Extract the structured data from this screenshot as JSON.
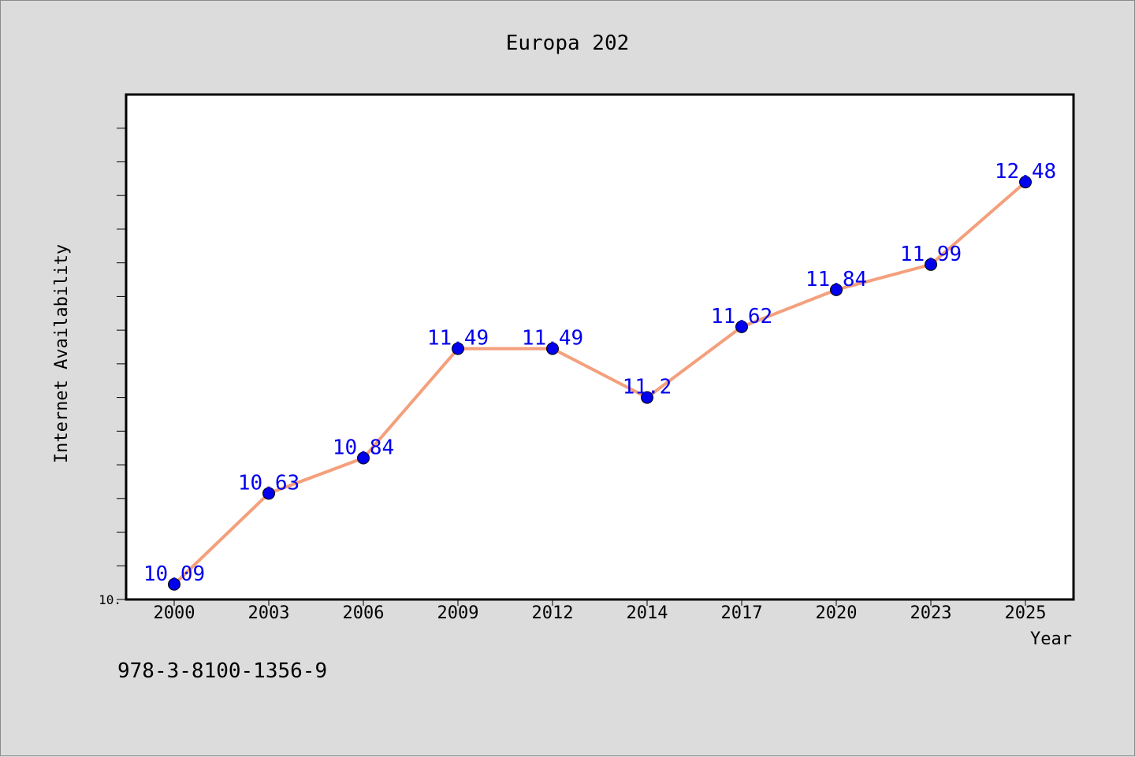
{
  "chart_data": {
    "type": "line",
    "title": "Europa 202",
    "xlabel": "Year",
    "ylabel": "Internet Availability",
    "categories": [
      "2000",
      "2003",
      "2006",
      "2009",
      "2012",
      "2014",
      "2017",
      "2020",
      "2023",
      "2025"
    ],
    "series": [
      {
        "values": [
          10.09,
          10.63,
          10.84,
          11.49,
          11.49,
          11.2,
          11.62,
          11.84,
          11.99,
          12.48
        ],
        "labels": [
          "10.09",
          "10.63",
          "10.84",
          "11.49",
          "11.49",
          "11.2",
          "11.62",
          "11.84",
          "11.99",
          "12.48"
        ]
      }
    ],
    "ylim": [
      10.0,
      13.0
    ],
    "y_tick_label": "10.",
    "grid": false,
    "line_color": "#f4a07c",
    "marker_color": "#0000ee",
    "label_color": "#0000ee"
  },
  "footnote": "978-3-8100-1356-9"
}
